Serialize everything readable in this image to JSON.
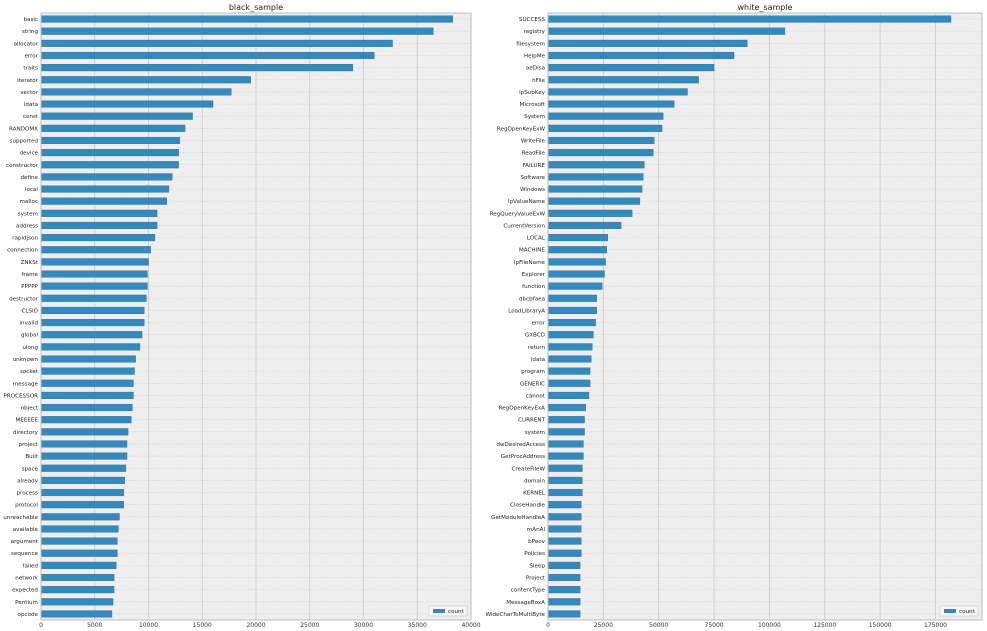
{
  "chart_data": [
    {
      "type": "bar",
      "orientation": "horizontal",
      "title": "black_sample",
      "legend": {
        "entry": "count",
        "placement": "lower-right"
      },
      "grid": true,
      "xlim": [
        0,
        40000
      ],
      "x_ticks": [
        0,
        5000,
        10000,
        15000,
        20000,
        25000,
        30000,
        35000,
        40000
      ],
      "color": "#348abd",
      "background": "#eeeeee",
      "categories": [
        "basic",
        "string",
        "allocator",
        "error",
        "traits",
        "iterator",
        "vector",
        "idata",
        "const",
        "RANDOMX",
        "supported",
        "device",
        "constructor",
        "define",
        "local",
        "malloc",
        "system",
        "address",
        "rapidjson",
        "connection",
        "ZNKSt",
        "frame",
        "PPPPP",
        "destructor",
        "CLSID",
        "invalid",
        "global",
        "ulong",
        "unknown",
        "socket",
        "message",
        "PROCESSOR",
        "object",
        "MEEEEE",
        "directory",
        "project",
        "Built",
        "space",
        "already",
        "process",
        "protocol",
        "unreachable",
        "available",
        "argument",
        "sequence",
        "failed",
        "network",
        "expected",
        "Pentium",
        "opcode"
      ],
      "values": [
        38300,
        36500,
        32700,
        31000,
        29000,
        19500,
        17700,
        16000,
        14100,
        13400,
        12900,
        12800,
        12800,
        12200,
        11900,
        11700,
        10800,
        10800,
        10600,
        10200,
        10000,
        9900,
        9900,
        9800,
        9600,
        9600,
        9400,
        9200,
        8800,
        8700,
        8600,
        8600,
        8500,
        8400,
        8100,
        8000,
        8000,
        7900,
        7800,
        7700,
        7700,
        7300,
        7200,
        7100,
        7100,
        7000,
        6800,
        6800,
        6700,
        6600
      ]
    },
    {
      "type": "bar",
      "orientation": "horizontal",
      "title": "white_sample",
      "legend": {
        "entry": "count",
        "placement": "lower-right"
      },
      "grid": true,
      "xlim": [
        0,
        196000
      ],
      "x_ticks": [
        0,
        25000,
        50000,
        75000,
        100000,
        125000,
        150000,
        175000
      ],
      "color": "#348abd",
      "background": "#eeeeee",
      "categories": [
        "SUCCESS",
        "registry",
        "filesystem",
        "HelpMe",
        "aeDlsa",
        "hFile",
        "lpSubKey",
        "Microsoft",
        "System",
        "RegOpenKeyExW",
        "WriteFile",
        "ReadFile",
        "FAILURE",
        "Software",
        "Windows",
        "lpValueName",
        "RegQueryValueExW",
        "CurrentVersion",
        "LOCAL",
        "MACHINE",
        "lpFileName",
        "Explorer",
        "function",
        "dbcbfaea",
        "LoadLibraryA",
        "error",
        "GXBCD",
        "return",
        "idata",
        "program",
        "GENERIC",
        "cannot",
        "RegOpenKeyExA",
        "CURRENT",
        "system",
        "dwDesiredAccess",
        "GetProcAddress",
        "CreateFileW",
        "domain",
        "KERNEL",
        "CloseHandle",
        "GetModuleHandleA",
        "mAnAl",
        "bPeov",
        "Policies",
        "Sleep",
        "Project",
        "contentType",
        "MessageBoxA",
        "WideCharToMultiByte"
      ],
      "values": [
        182000,
        107000,
        90000,
        84000,
        75000,
        68000,
        63000,
        57000,
        52000,
        51500,
        48000,
        47500,
        43500,
        43000,
        42500,
        41500,
        38000,
        33000,
        27000,
        26500,
        26000,
        25500,
        24500,
        22000,
        22000,
        21500,
        20500,
        20000,
        19500,
        19000,
        19000,
        18500,
        17000,
        16500,
        16500,
        16000,
        16000,
        15500,
        15500,
        15500,
        15000,
        15000,
        15000,
        15000,
        15000,
        14500,
        14500,
        14500,
        14500,
        14500
      ]
    }
  ]
}
